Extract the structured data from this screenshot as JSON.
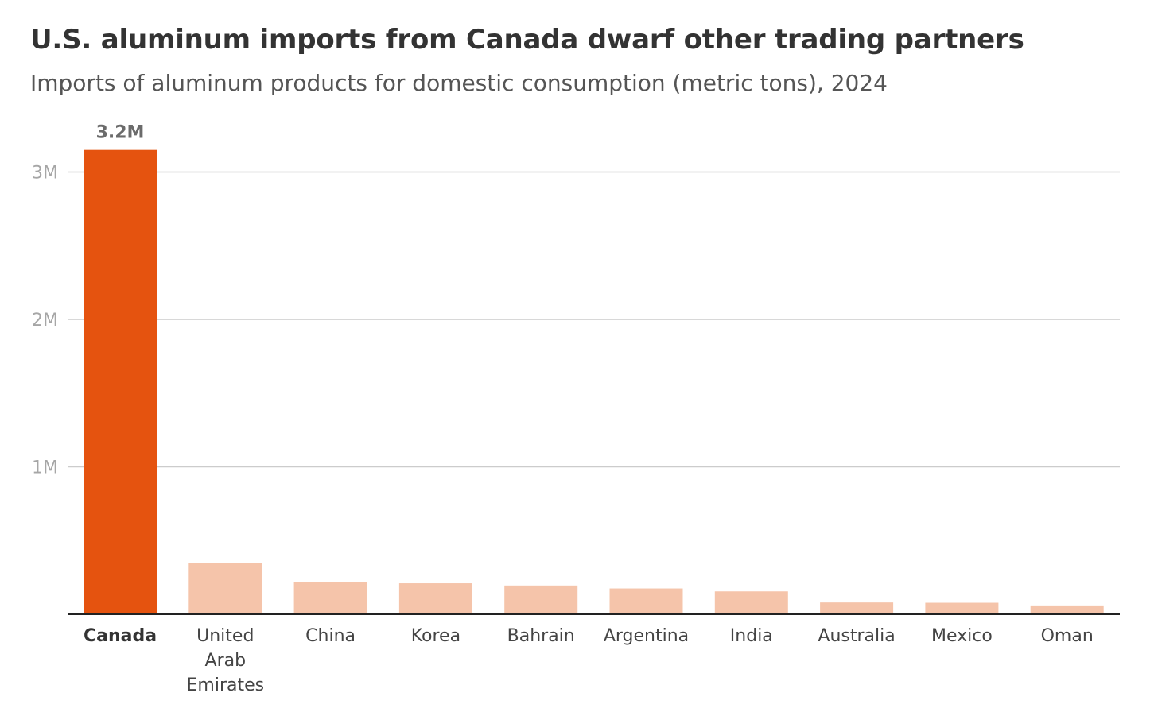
{
  "header": {
    "title": "U.S. aluminum imports from Canada dwarf other trading partners",
    "subtitle": "Imports of aluminum products for domestic consumption (metric tons), 2024"
  },
  "colors": {
    "highlight_bar": "#e5530f",
    "other_bar": "#f5c4aa",
    "gridline": "#cccccc",
    "axis": "#222222"
  },
  "chart_data": {
    "type": "bar",
    "title": "U.S. aluminum imports from Canada dwarf other trading partners",
    "subtitle": "Imports of aluminum products for domestic consumption (metric tons), 2024",
    "xlabel": "",
    "ylabel": "",
    "categories": [
      [
        "Canada"
      ],
      [
        "United",
        "Arab",
        "Emirates"
      ],
      [
        "China"
      ],
      [
        "Korea"
      ],
      [
        "Bahrain"
      ],
      [
        "Argentina"
      ],
      [
        "India"
      ],
      [
        "Australia"
      ],
      [
        "Mexico"
      ],
      [
        "Oman"
      ]
    ],
    "values": [
      3150000,
      345000,
      220000,
      210000,
      195000,
      175000,
      155000,
      80000,
      78000,
      60000
    ],
    "highlight_index": 0,
    "data_labels": [
      {
        "index": 0,
        "text": "3.2M"
      }
    ],
    "ylim": [
      0,
      3300000
    ],
    "yticks": [
      {
        "value": 1000000,
        "label": "1M"
      },
      {
        "value": 2000000,
        "label": "2M"
      },
      {
        "value": 3000000,
        "label": "3M"
      }
    ],
    "grid": true,
    "legend": "none"
  }
}
